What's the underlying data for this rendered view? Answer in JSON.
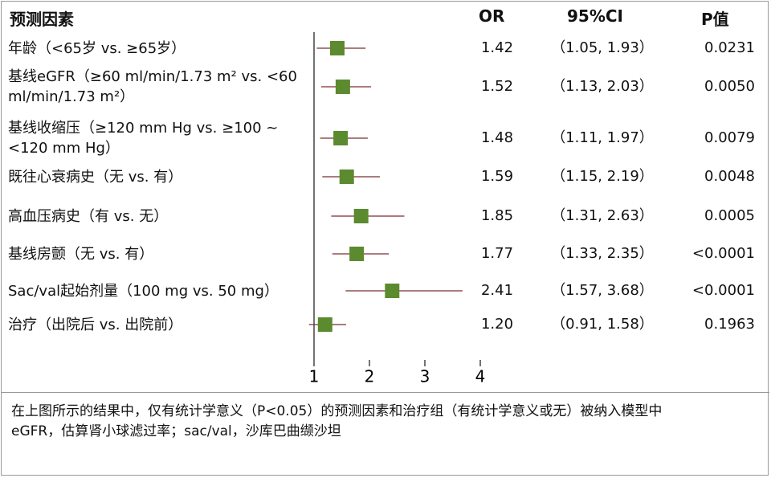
{
  "chart_data": {
    "type": "forest",
    "header": {
      "factor": "预测因素",
      "or": "OR",
      "ci": "95%CI",
      "p": "P值"
    },
    "categories": [
      "年龄（<65岁 vs. ≥65岁）",
      "基线eGFR（≥60 ml/min/1.73 m² vs. <60 ml/min/1.73 m²）",
      "基线收缩压（≥120 mm Hg vs. ≥100 ~<120 mm Hg）",
      "既往心衰病史（无 vs. 有）",
      "高血压病史（有 vs. 无）",
      "基线房颤（无 vs. 有）",
      "Sac/val起始剂量（100 mg vs. 50 mg）",
      "治疗（出院后 vs. 出院前）"
    ],
    "values": [
      1.42,
      1.52,
      1.48,
      1.59,
      1.85,
      1.77,
      2.41,
      1.2
    ],
    "value_labels": [
      "1.42",
      "1.52",
      "1.48",
      "1.59",
      "1.85",
      "1.77",
      "2.41",
      "1.20"
    ],
    "lower": [
      1.05,
      1.13,
      1.11,
      1.15,
      1.31,
      1.33,
      1.57,
      0.91
    ],
    "upper": [
      1.93,
      2.03,
      1.97,
      2.19,
      2.63,
      2.35,
      3.68,
      1.58
    ],
    "ci_labels": [
      "（1.05, 1.93）",
      "（1.13, 2.03）",
      "（1.11, 1.97）",
      "（1.15, 2.19）",
      "（1.31, 2.63）",
      "（1.33, 2.35）",
      "（1.57, 3.68）",
      "（0.91, 1.58）"
    ],
    "p_labels": [
      "0.0231",
      "0.0050",
      "0.0079",
      "0.0048",
      "0.0005",
      "<0.0001",
      "<0.0001",
      "0.1963"
    ],
    "xlim": [
      1,
      4
    ],
    "xticks": [
      1,
      2,
      3,
      4
    ],
    "marker_color": "#5b8a2f",
    "line_color": "#7a2e2e",
    "notes": [
      "在上图所示的结果中，仅有统计学意义（P<0.05）的预测因素和治疗组（有统计学意义或无）被纳入模型中",
      "eGFR，估算肾小球滤过率；sac/val，沙库巴曲缬沙坦"
    ]
  }
}
